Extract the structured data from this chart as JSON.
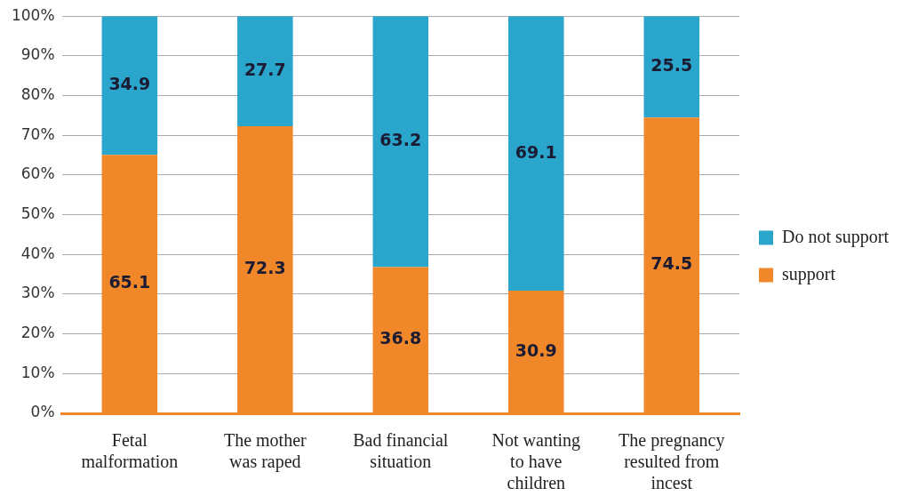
{
  "chart_data": {
    "type": "bar",
    "stacked": true,
    "categories": [
      "Fetal malformation",
      "The mother was raped",
      "Bad financial situation",
      "Not wanting to have children",
      "The pregnancy resulted from incest"
    ],
    "series": [
      {
        "name": "support",
        "color": "#f0882a",
        "values": [
          65.1,
          72.3,
          36.8,
          30.9,
          74.5
        ]
      },
      {
        "name": "Do not support",
        "color": "#2aa6cc",
        "values": [
          34.9,
          27.7,
          63.2,
          69.1,
          25.5
        ]
      }
    ],
    "ylim": [
      0,
      100
    ],
    "yticks": [
      {
        "value": 0,
        "label": "0%"
      },
      {
        "value": 10,
        "label": "10%"
      },
      {
        "value": 20,
        "label": "20%"
      },
      {
        "value": 30,
        "label": "30%"
      },
      {
        "value": 40,
        "label": "40%"
      },
      {
        "value": 50,
        "label": "50%"
      },
      {
        "value": 60,
        "label": "60%"
      },
      {
        "value": 70,
        "label": "70%"
      },
      {
        "value": 80,
        "label": "80%"
      },
      {
        "value": 90,
        "label": "90%"
      },
      {
        "value": 100,
        "label": "100%"
      }
    ],
    "grid": "y",
    "legend": "right",
    "data_labels": true
  }
}
